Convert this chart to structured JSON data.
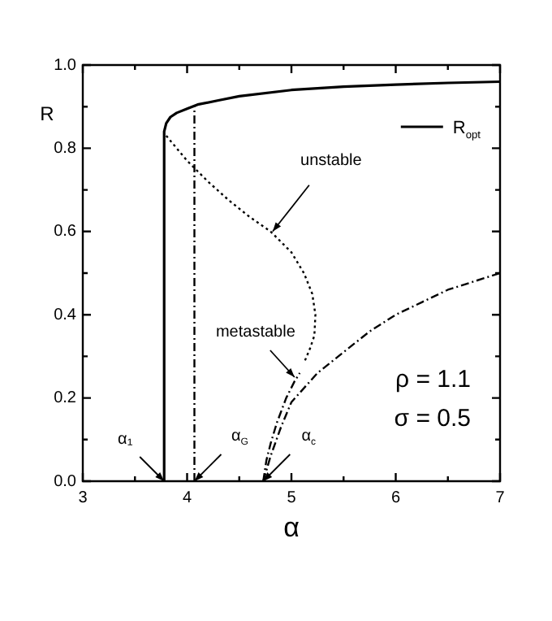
{
  "chart_data": {
    "type": "line",
    "xlabel": "α",
    "ylabel": "R",
    "xlim": [
      3,
      7
    ],
    "ylim": [
      0,
      1
    ],
    "xticks": [
      3,
      {
        "value": 3.5,
        "label": null
      },
      4,
      {
        "value": 4.5,
        "label": null
      },
      5,
      {
        "value": 5.5,
        "label": null
      },
      6,
      {
        "value": 6.5,
        "label": null
      },
      7
    ],
    "yticks": [
      {
        "value": 0,
        "label": "0.0"
      },
      {
        "value": 0.1,
        "label": null
      },
      {
        "value": 0.2,
        "label": "0.2"
      },
      {
        "value": 0.3,
        "label": null
      },
      {
        "value": 0.4,
        "label": "0.4"
      },
      {
        "value": 0.5,
        "label": null
      },
      {
        "value": 0.6,
        "label": "0.6"
      },
      {
        "value": 0.7,
        "label": null
      },
      {
        "value": 0.8,
        "label": "0.8"
      },
      {
        "value": 0.9,
        "label": null
      },
      {
        "value": 1,
        "label": "1.0"
      }
    ],
    "grid": false,
    "legend": "top right",
    "marker": "none",
    "series": [
      {
        "name": "R$_{opt}$",
        "color": "#000000",
        "line_style": "solid",
        "x": [
          3.78,
          3.78,
          3.8,
          3.84,
          3.9,
          4.0,
          4.1,
          4.3,
          4.5,
          5.0,
          5.5,
          6.0,
          6.5,
          7.0
        ],
        "values": [
          0,
          0.84,
          0.86,
          0.875,
          0.885,
          0.895,
          0.905,
          0.915,
          0.925,
          0.94,
          0.948,
          0.953,
          0.957,
          0.96
        ]
      },
      {
        "color": "#000000",
        "line_style": "dashed",
        "x": [
          4.07,
          4.07
        ],
        "values": [
          0,
          0.9
        ]
      },
      {
        "color": "#000000",
        "line_style": "dotted",
        "x": [
          3.8,
          3.9,
          4.0,
          4.2,
          4.4,
          4.6,
          4.8,
          5.0,
          5.12,
          5.2,
          5.23,
          5.22,
          5.18,
          5.13
        ],
        "values": [
          0.83,
          0.8,
          0.77,
          0.72,
          0.675,
          0.635,
          0.6,
          0.55,
          0.5,
          0.45,
          0.4,
          0.35,
          0.32,
          0.29
        ]
      },
      {
        "color": "#000000",
        "line_style": "dashed",
        "x": [
          4.73,
          4.76,
          4.8,
          4.86,
          4.95,
          5.03,
          5.08
        ],
        "values": [
          0,
          0.05,
          0.09,
          0.14,
          0.2,
          0.24,
          0.26
        ]
      },
      {
        "color": "#000000",
        "line_style": "dashed",
        "x": [
          4.73,
          4.8,
          4.9,
          5.0,
          5.25,
          5.5,
          5.75,
          6.0,
          6.25,
          6.5,
          6.75,
          7.0
        ],
        "values": [
          0,
          0.06,
          0.13,
          0.19,
          0.26,
          0.31,
          0.36,
          0.4,
          0.43,
          0.46,
          0.48,
          0.5
        ]
      }
    ],
    "annotations": [
      {
        "text": "unstable",
        "x": 4.82,
        "y": 0.6
      },
      {
        "text": "metastable",
        "x": 5.03,
        "y": 0.25
      },
      {
        "text": "α₁",
        "x": 3.78,
        "y": 0
      },
      {
        "text": "α$_{G}$",
        "x": 4.07,
        "y": 0
      },
      {
        "text": "α$_{c}$",
        "x": 4.73,
        "y": 0
      },
      "ρ = 1.1",
      "σ = 0.5"
    ]
  }
}
